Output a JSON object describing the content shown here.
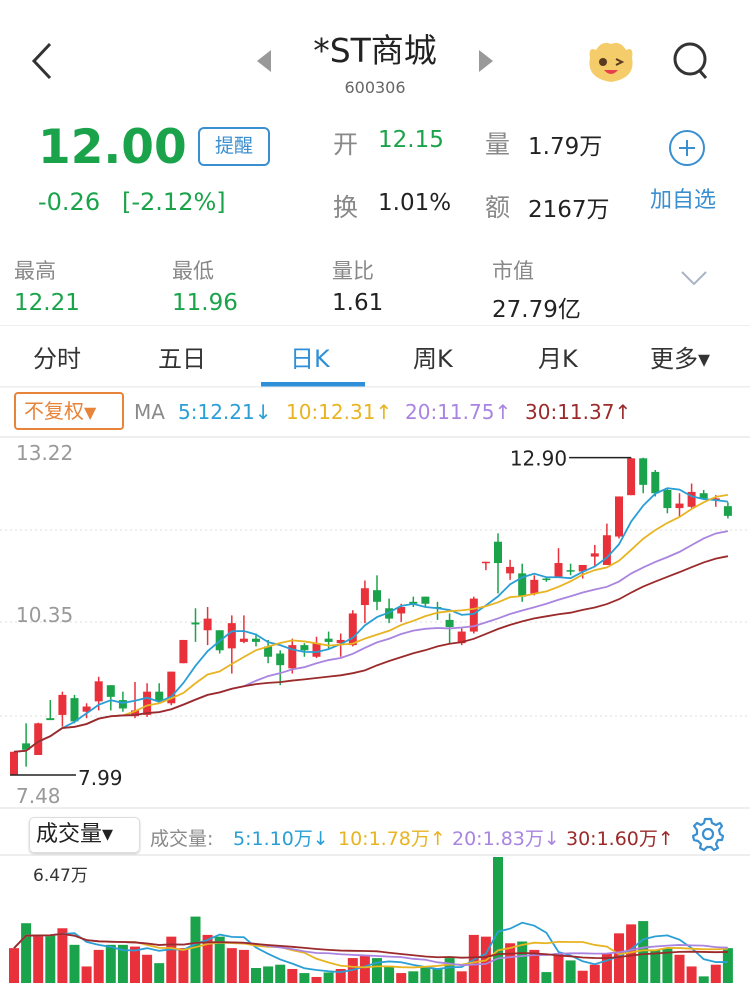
{
  "header": {
    "title": "*ST商城",
    "code": "600306",
    "back_icon": "chevron-left-icon",
    "prev_icon": "triangle-left-icon",
    "next_icon": "triangle-right-icon",
    "mascot_icon": "mascot-wink-icon",
    "search_icon": "search-icon"
  },
  "quote": {
    "price": "12.00",
    "change": "-0.26",
    "change_pct": "[-2.12%]",
    "remind_label": "提醒",
    "open_label": "开",
    "open": "12.15",
    "volume_label": "量",
    "volume": "1.79万",
    "turnover_label": "换",
    "turnover": "1.01%",
    "amount_label": "额",
    "amount": "2167万",
    "add_watch_label": "加自选"
  },
  "stats": [
    {
      "label": "最高",
      "value": "12.21"
    },
    {
      "label": "最低",
      "value": "11.96"
    },
    {
      "label": "量比",
      "value": "1.61"
    },
    {
      "label": "市值",
      "value": "27.79亿"
    }
  ],
  "tabs": [
    {
      "label": "分时"
    },
    {
      "label": "五日"
    },
    {
      "label": "日K",
      "active": true
    },
    {
      "label": "周K"
    },
    {
      "label": "月K"
    },
    {
      "label": "更多▾"
    }
  ],
  "kline": {
    "adjust_label": "不复权",
    "ma_label": "MA",
    "ma": [
      {
        "text": "5:12.21↓",
        "color": "#2a9fd6"
      },
      {
        "text": "10:12.31↑",
        "color": "#e8b422"
      },
      {
        "text": "20:11.75↑",
        "color": "#a984e0"
      },
      {
        "text": "30:11.37↑",
        "color": "#9b2a2a"
      }
    ],
    "volume_btn": "成交量▾",
    "vol_ma_label": "成交量:",
    "vol_ma": [
      {
        "text": "5:1.10万↓",
        "color": "#2a9fd6"
      },
      {
        "text": "10:1.78万↑",
        "color": "#e8b422"
      },
      {
        "text": "20:1.83万↓",
        "color": "#a984e0"
      },
      {
        "text": "30:1.60万↑",
        "color": "#9b2a2a"
      }
    ],
    "settings_icon": "gear-icon"
  },
  "colors": {
    "up": "#e8313a",
    "down": "#1aa34a",
    "accent": "#2f8fd8"
  },
  "chart_data": {
    "type": "candlestick",
    "y_axis_labels": [
      "13.22",
      "10.35",
      "7.48"
    ],
    "ylim": [
      7.48,
      13.22
    ],
    "high_label": "12.90",
    "low_label": "7.99",
    "volume_max_label": "6.47万",
    "volume_unit": "万",
    "volume_ylim": [
      0,
      6.47
    ],
    "grid": true,
    "ohlc": [
      [
        8.0,
        8.35,
        8.35,
        7.99
      ],
      [
        8.48,
        8.38,
        8.79,
        8.12
      ],
      [
        8.3,
        8.79,
        8.8,
        8.3
      ],
      [
        8.87,
        8.84,
        9.15,
        8.84
      ],
      [
        8.92,
        9.23,
        9.28,
        8.74
      ],
      [
        9.18,
        8.82,
        9.23,
        8.79
      ],
      [
        8.97,
        9.05,
        9.1,
        8.87
      ],
      [
        9.13,
        9.44,
        9.51,
        8.99
      ],
      [
        9.38,
        9.2,
        9.38,
        8.99
      ],
      [
        9.15,
        9.02,
        9.28,
        8.97
      ],
      [
        8.9,
        8.99,
        9.43,
        8.87
      ],
      [
        8.92,
        9.28,
        9.41,
        8.89
      ],
      [
        9.28,
        9.13,
        9.41,
        9.1
      ],
      [
        9.1,
        9.59,
        9.59,
        9.07
      ],
      [
        9.72,
        10.08,
        10.08,
        9.72
      ],
      [
        10.35,
        10.32,
        10.57,
        10.05
      ],
      [
        10.23,
        10.41,
        10.59,
        10.0
      ],
      [
        10.23,
        9.92,
        10.23,
        9.87
      ],
      [
        9.95,
        10.34,
        10.46,
        9.56
      ],
      [
        10.05,
        10.1,
        10.46,
        10.03
      ],
      [
        10.1,
        10.05,
        10.18,
        9.98
      ],
      [
        9.98,
        9.82,
        10.08,
        9.72
      ],
      [
        9.87,
        9.69,
        9.92,
        9.38
      ],
      [
        9.64,
        10.0,
        10.1,
        9.56
      ],
      [
        10.0,
        9.92,
        10.03,
        9.82
      ],
      [
        9.82,
        10.03,
        10.13,
        9.8
      ],
      [
        10.1,
        10.05,
        10.21,
        9.95
      ],
      [
        10.03,
        10.08,
        10.18,
        9.82
      ],
      [
        10.0,
        10.49,
        10.54,
        9.98
      ],
      [
        10.62,
        10.88,
        11.0,
        10.34
      ],
      [
        10.85,
        10.67,
        11.08,
        10.54
      ],
      [
        10.57,
        10.41,
        10.72,
        10.34
      ],
      [
        10.49,
        10.59,
        10.64,
        10.36
      ],
      [
        10.67,
        10.64,
        10.75,
        10.59
      ],
      [
        10.75,
        10.64,
        10.75,
        10.59
      ],
      [
        10.59,
        10.57,
        10.67,
        10.39
      ],
      [
        10.39,
        10.28,
        10.49,
        10.03
      ],
      [
        10.03,
        10.21,
        10.26,
        10.0
      ],
      [
        10.21,
        10.72,
        10.75,
        10.18
      ],
      [
        11.27,
        11.29,
        11.29,
        11.16
      ],
      [
        11.6,
        11.27,
        11.73,
        10.8
      ],
      [
        11.11,
        11.21,
        11.32,
        11.01
      ],
      [
        11.11,
        10.75,
        11.26,
        10.67
      ],
      [
        10.8,
        11.01,
        11.08,
        10.77
      ],
      [
        11.03,
        11.01,
        11.06,
        10.98
      ],
      [
        11.06,
        11.27,
        11.5,
        11.06
      ],
      [
        11.16,
        11.14,
        11.26,
        11.08
      ],
      [
        11.14,
        11.24,
        11.24,
        11.03
      ],
      [
        11.37,
        11.42,
        11.55,
        11.21
      ],
      [
        11.24,
        11.7,
        11.88,
        11.24
      ],
      [
        11.68,
        12.3,
        12.3,
        11.65
      ],
      [
        12.32,
        12.89,
        12.9,
        12.32
      ],
      [
        12.89,
        12.48,
        12.9,
        12.35
      ],
      [
        12.68,
        12.35,
        12.71,
        12.3
      ],
      [
        12.4,
        12.12,
        12.43,
        12.04
      ],
      [
        12.12,
        12.19,
        12.35,
        11.99
      ],
      [
        12.14,
        12.37,
        12.5,
        12.12
      ],
      [
        12.35,
        12.27,
        12.4,
        12.25
      ],
      [
        12.24,
        12.27,
        12.32,
        12.14
      ],
      [
        12.15,
        12.0,
        12.21,
        11.96
      ]
    ],
    "volume": [
      1.79,
      3.07,
      2.47,
      2.47,
      2.81,
      1.96,
      0.85,
      1.7,
      1.96,
      1.96,
      1.87,
      1.45,
      1.02,
      2.38,
      1.79,
      3.41,
      2.47,
      2.38,
      1.79,
      1.7,
      0.77,
      0.85,
      0.94,
      0.72,
      0.51,
      0.31,
      0.54,
      0.72,
      1.28,
      1.4,
      1.28,
      0.85,
      0.51,
      0.6,
      0.85,
      0.77,
      1.28,
      0.6,
      2.47,
      2.38,
      6.47,
      2.04,
      2.13,
      1.7,
      0.56,
      1.53,
      1.16,
      0.63,
      0.94,
      1.53,
      2.55,
      3.01,
      3.18,
      1.7,
      1.79,
      1.45,
      0.85,
      0.34,
      0.94,
      1.79
    ],
    "ma_periods": [
      5,
      10,
      20,
      30
    ]
  }
}
